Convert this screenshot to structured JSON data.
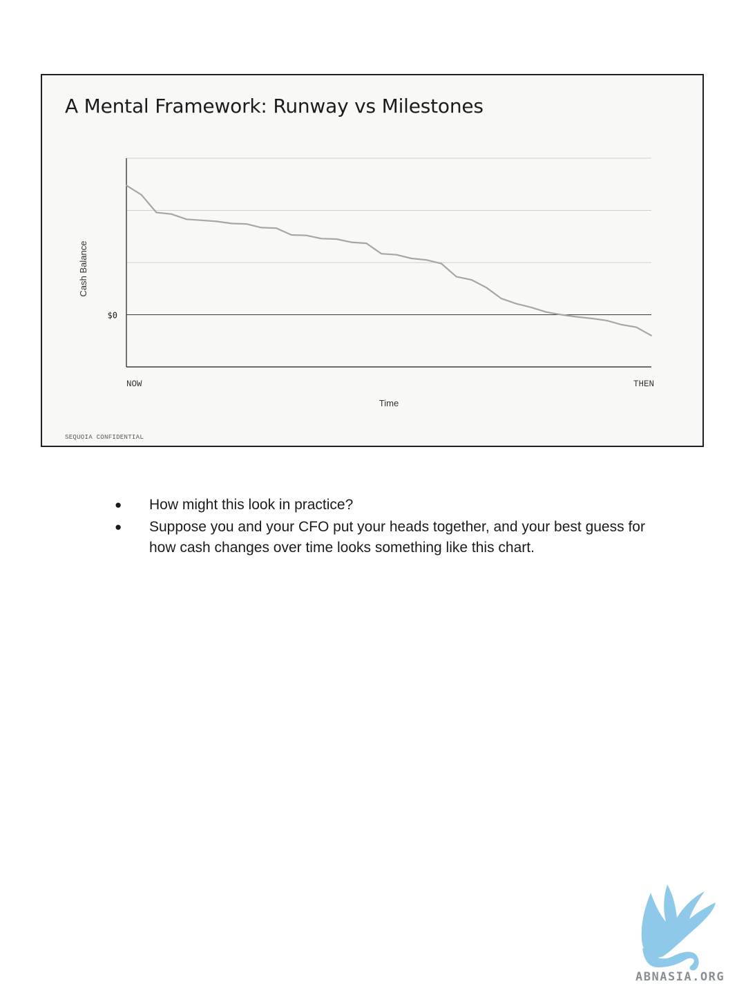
{
  "slide": {
    "title": "A Mental Framework: Runway vs Milestones",
    "footer": "SEQUOIA CONFIDENTIAL"
  },
  "chart_data": {
    "type": "line",
    "title": "A Mental Framework: Runway vs Milestones",
    "xlabel": "Time",
    "ylabel": "Cash Balance",
    "x_tick_labels": [
      "NOW",
      "THEN"
    ],
    "y_tick_labels": [
      {
        "value": 0,
        "label": "$0"
      }
    ],
    "ylim": [
      -1,
      3
    ],
    "xlim": [
      0,
      35
    ],
    "grid": true,
    "series": [
      {
        "color": "#a6a6a6",
        "x": [
          0,
          1,
          2,
          3,
          4,
          5,
          6,
          7,
          8,
          9,
          10,
          11,
          12,
          13,
          14,
          15,
          16,
          17,
          18,
          19,
          20,
          21,
          22,
          23,
          24,
          25,
          26,
          27,
          28,
          29,
          30,
          31,
          32,
          33,
          34,
          35
        ],
        "values": [
          2.48,
          2.3,
          1.96,
          1.93,
          1.83,
          1.81,
          1.79,
          1.75,
          1.74,
          1.67,
          1.66,
          1.53,
          1.52,
          1.46,
          1.45,
          1.39,
          1.37,
          1.17,
          1.15,
          1.08,
          1.05,
          0.98,
          0.73,
          0.67,
          0.52,
          0.31,
          0.21,
          0.14,
          0.05,
          0.0,
          -0.04,
          -0.07,
          -0.11,
          -0.19,
          -0.24,
          -0.4
        ]
      }
    ]
  },
  "bullets": [
    "How might this look in practice?",
    "Suppose you and your CFO put your heads together, and your best guess for how cash changes over time looks something like this chart."
  ],
  "watermark": {
    "text": "ABNASIA.ORG",
    "color": "#8fc9ea"
  }
}
